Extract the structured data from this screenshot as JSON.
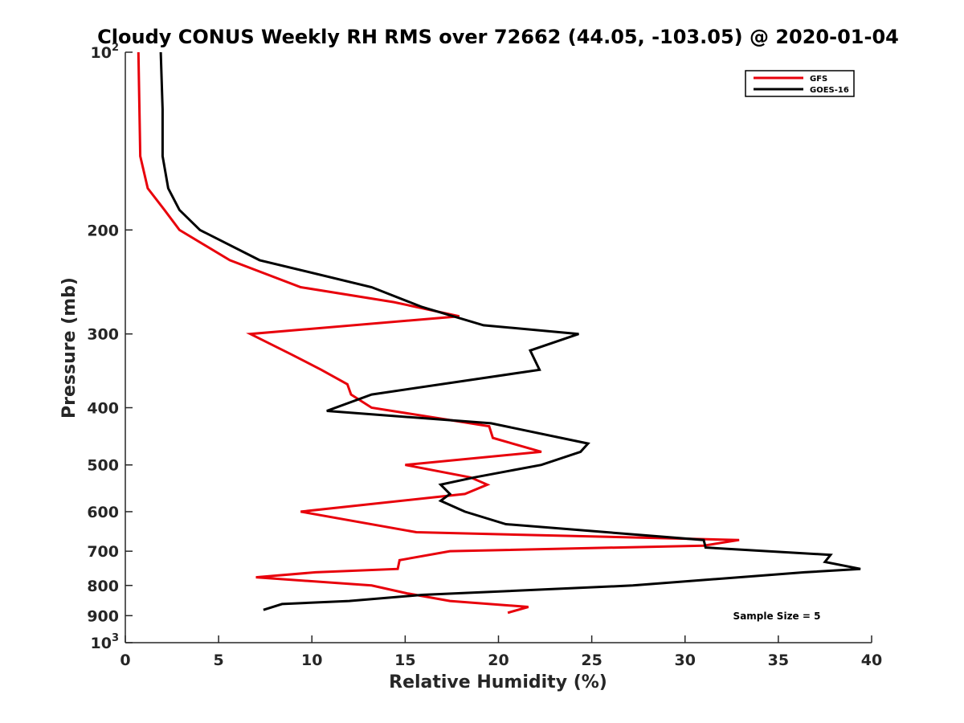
{
  "chart_data": {
    "type": "line",
    "title": "Cloudy CONUS Weekly RH RMS over 72662 (44.05, -103.05) @ 2020-01-04",
    "xlabel": "Relative Humidity (%)",
    "ylabel": "Pressure (mb)",
    "xlim": [
      0,
      40
    ],
    "ylim": [
      100,
      1000
    ],
    "y_scale": "log",
    "y_reversed": true,
    "grid": false,
    "legend_position": "top-right",
    "x_ticks": [
      0,
      5,
      10,
      15,
      20,
      25,
      30,
      35,
      40
    ],
    "x_tick_labels": [
      "0",
      "5",
      "10",
      "15",
      "20",
      "25",
      "30",
      "35",
      "40"
    ],
    "y_ticks": [
      100,
      200,
      300,
      400,
      500,
      600,
      700,
      800,
      900,
      1000
    ],
    "y_tick_labels": [
      {
        "base": "10",
        "exp": "2"
      },
      {
        "base": "200",
        "exp": ""
      },
      {
        "base": "300",
        "exp": ""
      },
      {
        "base": "400",
        "exp": ""
      },
      {
        "base": "500",
        "exp": ""
      },
      {
        "base": "600",
        "exp": ""
      },
      {
        "base": "700",
        "exp": ""
      },
      {
        "base": "800",
        "exp": ""
      },
      {
        "base": "900",
        "exp": ""
      },
      {
        "base": "10",
        "exp": "3"
      }
    ],
    "series": [
      {
        "name": "GFS",
        "color": "#e8000b",
        "points": [
          [
            0.7,
            100
          ],
          [
            0.8,
            150
          ],
          [
            1.2,
            170
          ],
          [
            2.1,
            185
          ],
          [
            2.9,
            200
          ],
          [
            5.6,
            225
          ],
          [
            9.4,
            250
          ],
          [
            14.4,
            265
          ],
          [
            17.9,
            280
          ],
          [
            6.7,
            300
          ],
          [
            8.9,
            325
          ],
          [
            10.5,
            345
          ],
          [
            11.9,
            365
          ],
          [
            12.1,
            380
          ],
          [
            13.2,
            400
          ],
          [
            19.5,
            430
          ],
          [
            19.7,
            450
          ],
          [
            22.3,
            475
          ],
          [
            15.0,
            500
          ],
          [
            18.5,
            525
          ],
          [
            19.4,
            540
          ],
          [
            18.2,
            560
          ],
          [
            9.4,
            600
          ],
          [
            15.6,
            650
          ],
          [
            32.9,
            670
          ],
          [
            31.0,
            685
          ],
          [
            17.4,
            700
          ],
          [
            14.7,
            725
          ],
          [
            14.6,
            750
          ],
          [
            10.2,
            760
          ],
          [
            7.0,
            775
          ],
          [
            13.2,
            800
          ],
          [
            15.1,
            825
          ],
          [
            17.4,
            850
          ],
          [
            21.6,
            870
          ],
          [
            20.5,
            890
          ]
        ]
      },
      {
        "name": "GOES-16",
        "color": "#000000",
        "points": [
          [
            1.9,
            100
          ],
          [
            2.0,
            125
          ],
          [
            2.0,
            150
          ],
          [
            2.3,
            170
          ],
          [
            2.9,
            185
          ],
          [
            4.0,
            200
          ],
          [
            7.2,
            225
          ],
          [
            13.2,
            250
          ],
          [
            15.9,
            270
          ],
          [
            19.2,
            290
          ],
          [
            24.3,
            300
          ],
          [
            21.7,
            320
          ],
          [
            22.2,
            345
          ],
          [
            13.2,
            380
          ],
          [
            10.8,
            405
          ],
          [
            19.6,
            425
          ],
          [
            24.8,
            460
          ],
          [
            24.4,
            475
          ],
          [
            22.3,
            500
          ],
          [
            18.7,
            525
          ],
          [
            16.9,
            540
          ],
          [
            17.4,
            560
          ],
          [
            16.9,
            575
          ],
          [
            18.2,
            600
          ],
          [
            20.4,
            630
          ],
          [
            31.0,
            670
          ],
          [
            31.1,
            690
          ],
          [
            37.8,
            710
          ],
          [
            37.5,
            730
          ],
          [
            39.4,
            750
          ],
          [
            36.4,
            760
          ],
          [
            32.9,
            775
          ],
          [
            27.2,
            800
          ],
          [
            15.9,
            830
          ],
          [
            12.0,
            850
          ],
          [
            8.4,
            860
          ],
          [
            7.4,
            880
          ]
        ]
      }
    ],
    "annotations": [
      {
        "text": "Sample Size = 5"
      }
    ]
  }
}
